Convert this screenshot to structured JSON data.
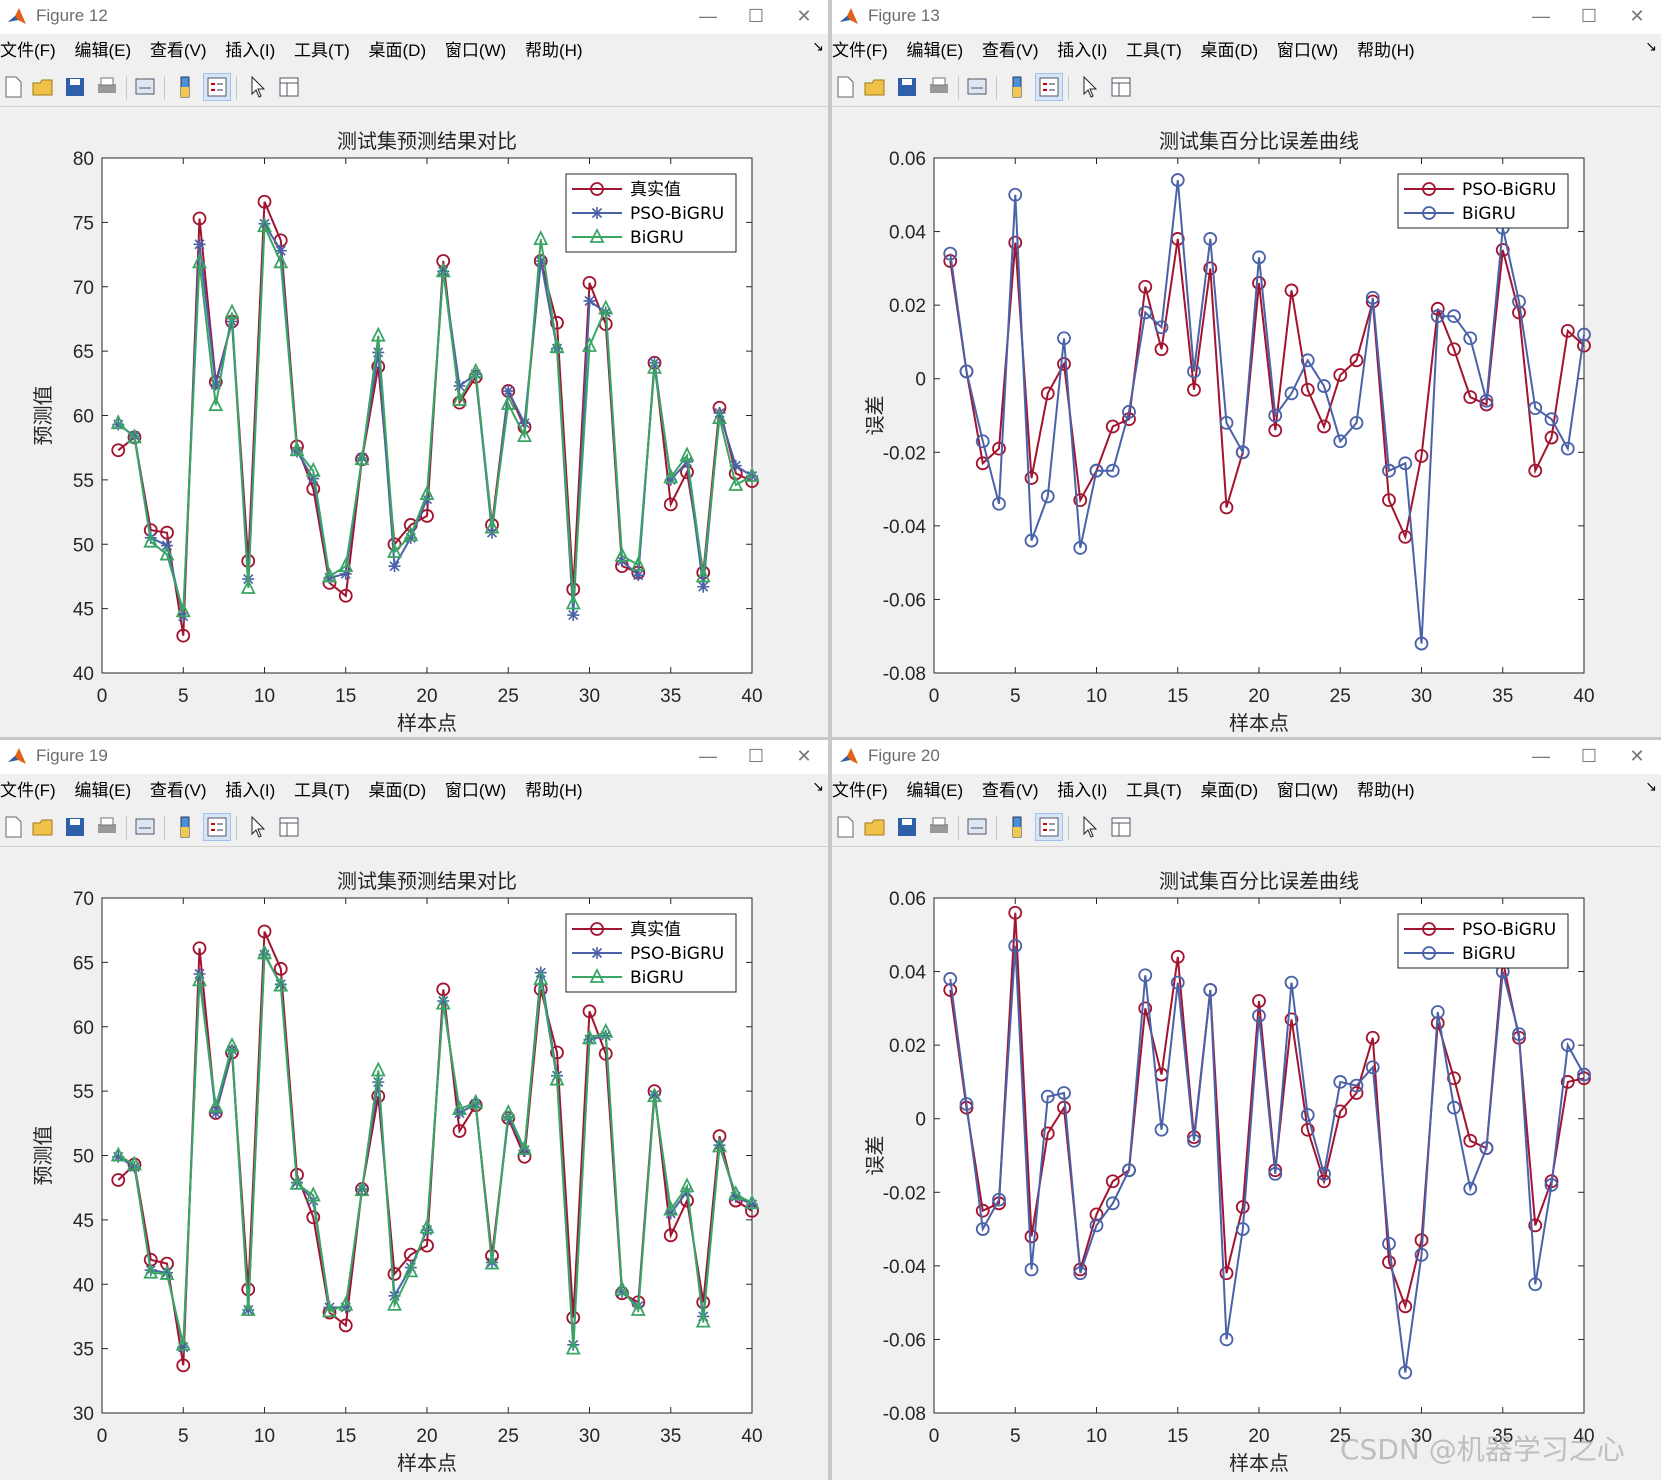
{
  "windows": [
    {
      "title": "Figure 12",
      "menu": [
        "文件(F)",
        "编辑(E)",
        "查看(V)",
        "插入(I)",
        "工具(T)",
        "桌面(D)",
        "窗口(W)",
        "帮助(H)"
      ],
      "chart_data": {
        "type": "line",
        "title": "测试集预测结果对比",
        "xlabel": "样本点",
        "ylabel": "预测值",
        "xlim": [
          0,
          40
        ],
        "ylim": [
          40,
          80
        ],
        "xticks": [
          0,
          5,
          10,
          15,
          20,
          25,
          30,
          35,
          40
        ],
        "yticks": [
          40,
          45,
          50,
          55,
          60,
          65,
          70,
          75,
          80
        ],
        "legend_position": "top-right",
        "x": [
          1,
          2,
          3,
          4,
          5,
          6,
          7,
          8,
          9,
          10,
          11,
          12,
          13,
          14,
          15,
          16,
          17,
          18,
          19,
          20,
          21,
          22,
          23,
          24,
          25,
          26,
          27,
          28,
          29,
          30,
          31,
          32,
          33,
          34,
          35,
          36,
          37,
          38,
          39,
          40
        ],
        "series": [
          {
            "name": "真实值",
            "color": "#a2142f",
            "marker": "circle",
            "values": [
              57.3,
              58.3,
              51.1,
              50.9,
              42.9,
              75.3,
              62.6,
              67.3,
              48.7,
              76.6,
              73.6,
              57.6,
              54.3,
              47.0,
              46.0,
              56.6,
              63.8,
              50.0,
              51.5,
              52.2,
              72.0,
              61.0,
              63.0,
              51.5,
              61.9,
              59.1,
              72.0,
              67.2,
              46.5,
              70.3,
              67.1,
              48.3,
              47.8,
              64.1,
              53.1,
              55.6,
              47.8,
              60.6,
              55.5,
              54.9
            ]
          },
          {
            "name": "PSO-BiGRU",
            "color": "#4a62a8",
            "marker": "star",
            "values": [
              59.3,
              58.4,
              50.5,
              49.9,
              44.4,
              73.3,
              62.4,
              67.3,
              47.3,
              74.9,
              72.8,
              57.2,
              55.1,
              47.4,
              47.7,
              56.7,
              64.9,
              48.3,
              50.5,
              53.5,
              71.2,
              62.3,
              63.2,
              50.9,
              61.9,
              59.4,
              72.0,
              65.2,
              44.5,
              68.9,
              68.0,
              48.7,
              47.6,
              64.1,
              55.0,
              56.4,
              46.7,
              60.2,
              56.1,
              55.3
            ]
          },
          {
            "name": "BiGRU",
            "color": "#3aa564",
            "marker": "triangle",
            "values": [
              59.4,
              58.3,
              50.2,
              49.2,
              44.8,
              71.9,
              60.8,
              68.0,
              46.6,
              74.7,
              71.9,
              57.3,
              55.7,
              47.5,
              48.3,
              56.6,
              66.2,
              49.4,
              50.7,
              53.9,
              71.2,
              61.2,
              63.4,
              51.3,
              60.9,
              58.4,
              73.7,
              65.3,
              45.4,
              65.4,
              68.3,
              49.1,
              48.4,
              63.7,
              55.2,
              56.9,
              47.5,
              59.8,
              54.6,
              55.3
            ]
          }
        ]
      }
    },
    {
      "title": "Figure 13",
      "menu": [
        "文件(F)",
        "编辑(E)",
        "查看(V)",
        "插入(I)",
        "工具(T)",
        "桌面(D)",
        "窗口(W)",
        "帮助(H)"
      ],
      "chart_data": {
        "type": "line",
        "title": "测试集百分比误差曲线",
        "xlabel": "样本点",
        "ylabel": "误差",
        "xlim": [
          0,
          40
        ],
        "ylim": [
          -0.08,
          0.06
        ],
        "xticks": [
          0,
          5,
          10,
          15,
          20,
          25,
          30,
          35,
          40
        ],
        "yticks": [
          -0.08,
          -0.06,
          -0.04,
          -0.02,
          0,
          0.02,
          0.04,
          0.06
        ],
        "ytick_labels": [
          "-0.08",
          "-0.06",
          "-0.04",
          "-0.02",
          "0",
          "0.02",
          "0.04",
          "0.06"
        ],
        "legend_position": "top-right",
        "x": [
          1,
          2,
          3,
          4,
          5,
          6,
          7,
          8,
          9,
          10,
          11,
          12,
          13,
          14,
          15,
          16,
          17,
          18,
          19,
          20,
          21,
          22,
          23,
          24,
          25,
          26,
          27,
          28,
          29,
          30,
          31,
          32,
          33,
          34,
          35,
          36,
          37,
          38,
          39,
          40
        ],
        "series": [
          {
            "name": "PSO-BiGRU",
            "color": "#a2142f",
            "marker": "circle",
            "values": [
              0.032,
              0.002,
              -0.023,
              -0.019,
              0.037,
              -0.027,
              -0.004,
              0.004,
              -0.033,
              -0.025,
              -0.013,
              -0.011,
              0.025,
              0.008,
              0.038,
              -0.003,
              0.03,
              -0.035,
              -0.02,
              0.026,
              -0.014,
              0.024,
              -0.003,
              -0.013,
              0.001,
              0.005,
              0.021,
              -0.033,
              -0.043,
              -0.021,
              0.019,
              0.008,
              -0.005,
              -0.007,
              0.035,
              0.018,
              -0.025,
              -0.016,
              0.013,
              0.009
            ]
          },
          {
            "name": "BiGRU",
            "color": "#4a62a8",
            "marker": "circle",
            "values": [
              0.034,
              0.002,
              -0.017,
              -0.034,
              0.05,
              -0.044,
              -0.032,
              0.011,
              -0.046,
              -0.025,
              -0.025,
              -0.009,
              0.018,
              0.014,
              0.054,
              0.002,
              0.038,
              -0.012,
              -0.02,
              0.033,
              -0.01,
              -0.004,
              0.005,
              -0.002,
              -0.017,
              -0.012,
              0.022,
              -0.025,
              -0.023,
              -0.072,
              0.017,
              0.017,
              0.011,
              -0.006,
              0.041,
              0.021,
              -0.008,
              -0.011,
              -0.019,
              0.012
            ]
          }
        ]
      }
    },
    {
      "title": "Figure 19",
      "menu": [
        "文件(F)",
        "编辑(E)",
        "查看(V)",
        "插入(I)",
        "工具(T)",
        "桌面(D)",
        "窗口(W)",
        "帮助(H)"
      ],
      "chart_data": {
        "type": "line",
        "title": "测试集预测结果对比",
        "xlabel": "样本点",
        "ylabel": "预测值",
        "xlim": [
          0,
          40
        ],
        "ylim": [
          30,
          70
        ],
        "xticks": [
          0,
          5,
          10,
          15,
          20,
          25,
          30,
          35,
          40
        ],
        "yticks": [
          30,
          35,
          40,
          45,
          50,
          55,
          60,
          65,
          70
        ],
        "legend_position": "top-right",
        "x": [
          1,
          2,
          3,
          4,
          5,
          6,
          7,
          8,
          9,
          10,
          11,
          12,
          13,
          14,
          15,
          16,
          17,
          18,
          19,
          20,
          21,
          22,
          23,
          24,
          25,
          26,
          27,
          28,
          29,
          30,
          31,
          32,
          33,
          34,
          35,
          36,
          37,
          38,
          39,
          40
        ],
        "series": [
          {
            "name": "真实值",
            "color": "#a2142f",
            "marker": "circle",
            "values": [
              48.1,
              49.3,
              41.9,
              41.6,
              33.7,
              66.1,
              53.3,
              58.0,
              39.6,
              67.4,
              64.5,
              48.5,
              45.2,
              37.8,
              36.8,
              47.4,
              54.6,
              40.8,
              42.3,
              43.0,
              62.9,
              51.9,
              53.9,
              42.2,
              52.9,
              49.9,
              62.9,
              58.0,
              37.4,
              61.2,
              57.9,
              39.3,
              38.6,
              55.0,
              43.8,
              46.5,
              38.6,
              51.5,
              46.5,
              45.7
            ]
          },
          {
            "name": "PSO-BiGRU",
            "color": "#4a62a8",
            "marker": "star",
            "values": [
              49.9,
              49.1,
              41.1,
              40.9,
              35.1,
              64.1,
              53.3,
              58.2,
              38.0,
              65.6,
              63.3,
              47.9,
              46.5,
              38.2,
              38.2,
              47.4,
              55.7,
              39.1,
              41.3,
              44.2,
              62.0,
              53.3,
              54.0,
              41.7,
              53.0,
              50.4,
              64.2,
              56.2,
              35.3,
              59.0,
              59.3,
              39.4,
              38.3,
              54.7,
              45.5,
              47.2,
              37.5,
              50.8,
              46.8,
              46.2
            ]
          },
          {
            "name": "BiGRU",
            "color": "#3aa564",
            "marker": "triangle",
            "values": [
              50.0,
              49.3,
              40.9,
              40.8,
              35.3,
              63.6,
              53.8,
              58.5,
              38.0,
              65.7,
              63.2,
              47.8,
              46.9,
              37.9,
              38.4,
              47.3,
              56.6,
              38.4,
              41.0,
              44.4,
              61.8,
              53.6,
              54.1,
              41.6,
              53.3,
              50.5,
              63.7,
              55.9,
              35.0,
              59.1,
              59.6,
              39.6,
              38.0,
              54.6,
              45.8,
              47.6,
              37.1,
              50.7,
              47.0,
              46.3
            ]
          }
        ]
      }
    },
    {
      "title": "Figure 20",
      "menu": [
        "文件(F)",
        "编辑(E)",
        "查看(V)",
        "插入(I)",
        "工具(T)",
        "桌面(D)",
        "窗口(W)",
        "帮助(H)"
      ],
      "chart_data": {
        "type": "line",
        "title": "测试集百分比误差曲线",
        "xlabel": "样本点",
        "ylabel": "误差",
        "xlim": [
          0,
          40
        ],
        "ylim": [
          -0.08,
          0.06
        ],
        "xticks": [
          0,
          5,
          10,
          15,
          20,
          25,
          30,
          35,
          40
        ],
        "yticks": [
          -0.08,
          -0.06,
          -0.04,
          -0.02,
          0,
          0.02,
          0.04,
          0.06
        ],
        "ytick_labels": [
          "-0.08",
          "-0.06",
          "-0.04",
          "-0.02",
          "0",
          "0.02",
          "0.04",
          "0.06"
        ],
        "legend_position": "top-right",
        "x": [
          1,
          2,
          3,
          4,
          5,
          6,
          7,
          8,
          9,
          10,
          11,
          12,
          13,
          14,
          15,
          16,
          17,
          18,
          19,
          20,
          21,
          22,
          23,
          24,
          25,
          26,
          27,
          28,
          29,
          30,
          31,
          32,
          33,
          34,
          35,
          36,
          37,
          38,
          39,
          40
        ],
        "series": [
          {
            "name": "PSO-BiGRU",
            "color": "#a2142f",
            "marker": "circle",
            "values": [
              0.035,
              0.003,
              -0.025,
              -0.023,
              0.056,
              -0.032,
              -0.004,
              0.003,
              -0.041,
              -0.026,
              -0.017,
              -0.014,
              0.03,
              0.012,
              0.044,
              -0.005,
              0.035,
              -0.042,
              -0.024,
              0.032,
              -0.014,
              0.027,
              -0.003,
              -0.017,
              0.002,
              0.007,
              0.022,
              -0.039,
              -0.051,
              -0.033,
              0.026,
              0.011,
              -0.006,
              -0.008,
              0.043,
              0.022,
              -0.029,
              -0.017,
              0.01,
              0.011
            ]
          },
          {
            "name": "BiGRU",
            "color": "#4a62a8",
            "marker": "circle",
            "values": [
              0.038,
              0.004,
              -0.03,
              -0.022,
              0.047,
              -0.041,
              0.006,
              0.007,
              -0.042,
              -0.029,
              -0.023,
              -0.014,
              0.039,
              -0.003,
              0.037,
              -0.006,
              0.035,
              -0.06,
              -0.03,
              0.028,
              -0.015,
              0.037,
              0.001,
              -0.015,
              0.01,
              0.009,
              0.014,
              -0.034,
              -0.069,
              -0.037,
              0.029,
              0.003,
              -0.019,
              -0.008,
              0.04,
              0.023,
              -0.045,
              -0.018,
              0.02,
              0.012
            ]
          }
        ]
      }
    }
  ],
  "watermark": "CSDN @机器学习之心"
}
